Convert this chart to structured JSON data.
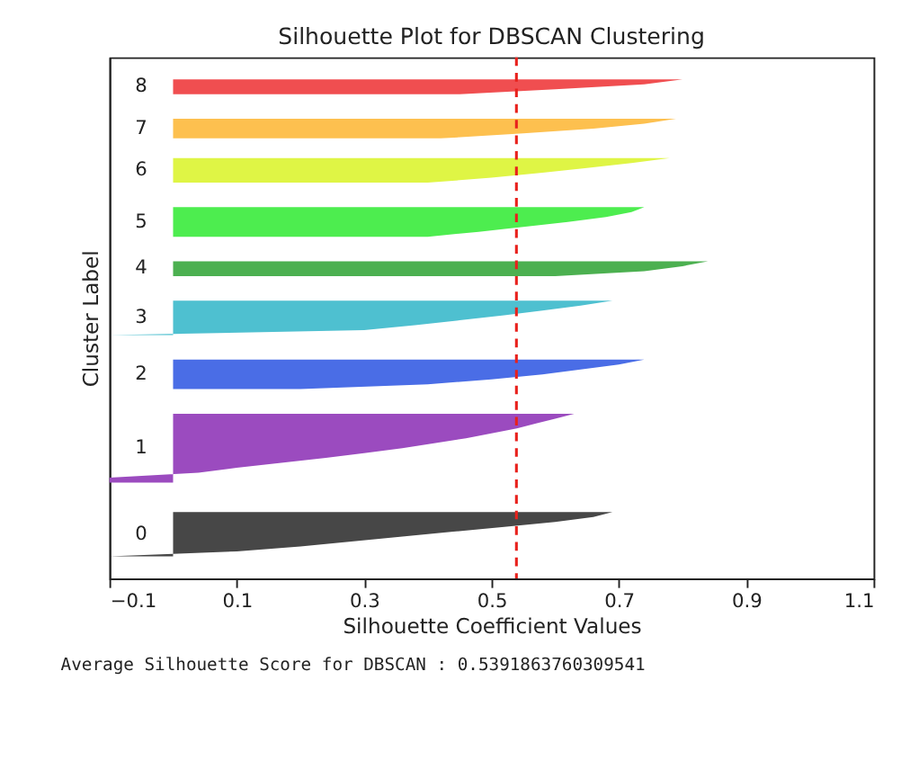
{
  "chart_data": {
    "type": "area",
    "orientation": "horizontal",
    "title": "Silhouette Plot for DBSCAN Clustering",
    "xlabel": "Silhouette Coefficient Values",
    "ylabel": "Cluster Label",
    "categories": [
      null,
      null,
      null,
      null,
      null,
      null,
      null,
      null,
      null,
      null,
      null,
      null,
      null,
      null,
      null,
      null,
      null,
      null,
      null,
      null,
      null,
      null,
      null,
      null,
      null,
      null,
      null,
      null,
      null,
      null,
      null,
      null,
      null,
      null,
      null,
      null,
      null,
      null,
      null,
      null,
      null,
      null,
      null,
      null,
      null,
      null,
      null,
      null,
      null,
      null,
      null,
      null,
      null,
      null,
      null,
      null,
      null,
      null,
      null,
      null,
      null,
      null,
      null,
      null,
      null,
      null,
      null,
      null,
      null,
      null,
      null,
      null,
      null,
      null,
      null,
      null,
      null,
      null,
      null,
      null,
      null,
      null,
      null,
      null,
      null,
      null,
      null,
      null,
      null,
      null,
      null,
      null,
      null,
      null,
      null,
      null,
      null,
      null,
      null,
      null,
      null,
      null,
      null,
      null,
      null,
      null
    ],
    "xlim": [
      -0.1,
      1.1
    ],
    "xticks": [
      -0.1,
      0.1,
      0.3,
      0.5,
      0.7,
      0.9,
      1.1
    ],
    "tick_labels": "x",
    "series": [
      {
        "name": "0",
        "color": "#474747",
        "values": [
          null,
          null,
          null,
          null,
          null,
          null,
          null,
          null,
          null,
          null,
          null,
          null,
          null,
          null,
          null,
          null,
          null,
          null,
          null,
          null,
          null,
          null,
          null,
          null,
          null,
          null,
          null,
          null,
          null,
          null,
          null,
          null,
          null,
          null,
          null,
          null,
          null,
          null,
          null,
          null,
          null,
          null,
          null,
          null,
          null,
          null,
          null,
          null,
          null,
          null,
          null,
          null,
          null,
          null,
          null,
          null,
          null,
          null,
          null,
          null,
          null,
          null,
          null,
          null,
          null,
          null,
          null,
          null,
          null,
          null,
          null,
          null,
          null,
          null,
          null,
          null,
          null,
          null,
          null,
          null,
          null,
          null,
          null,
          null,
          null,
          null,
          null,
          null,
          null,
          null,
          null,
          null,
          0.69,
          0.66,
          0.6,
          0.52,
          0.44,
          0.36,
          0.28,
          0.2,
          0.1,
          -0.1,
          null,
          null,
          null,
          null
        ]
      },
      {
        "name": "1",
        "color": "#9b4bbf",
        "values": [
          null,
          null,
          null,
          null,
          null,
          null,
          null,
          null,
          null,
          null,
          null,
          null,
          null,
          null,
          null,
          null,
          null,
          null,
          null,
          null,
          null,
          null,
          null,
          null,
          null,
          null,
          null,
          null,
          null,
          null,
          null,
          null,
          null,
          null,
          null,
          null,
          null,
          null,
          null,
          null,
          null,
          null,
          null,
          null,
          null,
          null,
          null,
          null,
          null,
          null,
          null,
          null,
          null,
          null,
          null,
          null,
          null,
          null,
          null,
          null,
          null,
          null,
          null,
          null,
          null,
          null,
          null,
          null,
          null,
          null,
          null,
          null,
          0.63,
          0.6,
          0.57,
          0.54,
          0.5,
          0.46,
          0.41,
          0.36,
          0.3,
          0.24,
          0.17,
          0.1,
          0.04,
          -0.1,
          -0.1,
          null,
          null,
          null,
          null,
          null,
          null,
          null,
          null,
          null,
          null,
          null,
          null,
          null,
          null,
          null,
          null,
          null,
          null,
          null
        ]
      },
      {
        "name": "2",
        "color": "#4a6de6",
        "values": [
          null,
          null,
          null,
          null,
          null,
          null,
          null,
          null,
          null,
          null,
          null,
          null,
          null,
          null,
          null,
          null,
          null,
          null,
          null,
          null,
          null,
          null,
          null,
          null,
          null,
          null,
          null,
          null,
          null,
          null,
          null,
          null,
          null,
          null,
          null,
          null,
          null,
          null,
          null,
          null,
          null,
          null,
          null,
          null,
          null,
          null,
          null,
          null,
          null,
          null,
          null,
          null,
          null,
          null,
          null,
          null,
          null,
          null,
          null,
          null,
          null,
          0.74,
          0.7,
          0.64,
          0.58,
          0.5,
          0.4,
          0.2,
          null,
          null,
          null,
          null,
          null,
          null,
          null,
          null,
          null,
          null,
          null,
          null,
          null,
          null,
          null,
          null,
          null,
          null,
          null,
          null,
          null,
          null,
          null,
          null,
          null,
          null,
          null,
          null,
          null,
          null,
          null,
          null,
          null,
          null,
          null,
          null,
          null,
          null
        ]
      },
      {
        "name": "3",
        "color": "#4ec0d0",
        "values": [
          null,
          null,
          null,
          null,
          null,
          null,
          null,
          null,
          null,
          null,
          null,
          null,
          null,
          null,
          null,
          null,
          null,
          null,
          null,
          null,
          null,
          null,
          null,
          null,
          null,
          null,
          null,
          null,
          null,
          null,
          null,
          null,
          null,
          null,
          null,
          null,
          null,
          null,
          null,
          null,
          null,
          null,
          null,
          null,
          null,
          null,
          null,
          null,
          null,
          0.69,
          0.64,
          0.58,
          0.52,
          0.45,
          0.38,
          0.3,
          -0.1,
          null,
          null,
          null,
          null,
          null,
          null,
          null,
          null,
          null,
          null,
          null,
          null,
          null,
          null,
          null,
          null,
          null,
          null,
          null,
          null,
          null,
          null,
          null,
          null,
          null,
          null,
          null,
          null,
          null,
          null,
          null,
          null,
          null,
          null,
          null,
          null,
          null,
          null,
          null,
          null,
          null,
          null,
          null,
          null,
          null,
          null,
          null,
          null,
          null
        ]
      },
      {
        "name": "4",
        "color": "#4cb050",
        "values": [
          null,
          null,
          null,
          null,
          null,
          null,
          null,
          null,
          null,
          null,
          null,
          null,
          null,
          null,
          null,
          null,
          null,
          null,
          null,
          null,
          null,
          null,
          null,
          null,
          null,
          null,
          null,
          null,
          null,
          null,
          null,
          null,
          null,
          null,
          null,
          null,
          null,
          null,
          null,
          null,
          null,
          0.84,
          0.8,
          0.74,
          0.6,
          null,
          null,
          null,
          null,
          null,
          null,
          null,
          null,
          null,
          null,
          null,
          null,
          null,
          null,
          null,
          null,
          null,
          null,
          null,
          null,
          null,
          null,
          null,
          null,
          null,
          null,
          null,
          null,
          null,
          null,
          null,
          null,
          null,
          null,
          null,
          null,
          null,
          null,
          null,
          null,
          null,
          null,
          null,
          null,
          null,
          null,
          null,
          null,
          null,
          null,
          null,
          null,
          null,
          null,
          null,
          null,
          null,
          null,
          null,
          null,
          null
        ]
      },
      {
        "name": "5",
        "color": "#4ded4f",
        "values": [
          null,
          null,
          null,
          null,
          null,
          null,
          null,
          null,
          null,
          null,
          null,
          null,
          null,
          null,
          null,
          null,
          null,
          null,
          null,
          null,
          null,
          null,
          null,
          null,
          null,
          null,
          null,
          null,
          null,
          null,
          0.74,
          0.72,
          0.68,
          0.62,
          0.55,
          0.48,
          0.4,
          null,
          null,
          null,
          null,
          null,
          null,
          null,
          null,
          null,
          null,
          null,
          null,
          null,
          null,
          null,
          null,
          null,
          null,
          null,
          null,
          null,
          null,
          null,
          null,
          null,
          null,
          null,
          null,
          null,
          null,
          null,
          null,
          null,
          null,
          null,
          null,
          null,
          null,
          null,
          null,
          null,
          null,
          null,
          null,
          null,
          null,
          null,
          null,
          null,
          null,
          null,
          null,
          null,
          null,
          null,
          null,
          null,
          null,
          null,
          null,
          null,
          null,
          null,
          null,
          null,
          null,
          null,
          null,
          null
        ]
      },
      {
        "name": "6",
        "color": "#dff545",
        "values": [
          null,
          null,
          null,
          null,
          null,
          null,
          null,
          null,
          null,
          null,
          null,
          null,
          null,
          null,
          null,
          null,
          null,
          null,
          null,
          null,
          0.78,
          0.72,
          0.65,
          0.58,
          0.5,
          0.4,
          null,
          null,
          null,
          null,
          null,
          null,
          null,
          null,
          null,
          null,
          null,
          null,
          null,
          null,
          null,
          null,
          null,
          null,
          null,
          null,
          null,
          null,
          null,
          null,
          null,
          null,
          null,
          null,
          null,
          null,
          null,
          null,
          null,
          null,
          null,
          null,
          null,
          null,
          null,
          null,
          null,
          null,
          null,
          null,
          null,
          null,
          null,
          null,
          null,
          null,
          null,
          null,
          null,
          null,
          null,
          null,
          null,
          null,
          null,
          null,
          null,
          null,
          null,
          null,
          null,
          null,
          null,
          null,
          null,
          null,
          null,
          null,
          null,
          null,
          null,
          null,
          null,
          null,
          null,
          null
        ]
      },
      {
        "name": "7",
        "color": "#fdc04f",
        "values": [
          null,
          null,
          null,
          null,
          null,
          null,
          null,
          null,
          null,
          null,
          null,
          null,
          0.79,
          0.74,
          0.66,
          0.55,
          0.42,
          null,
          null,
          null,
          null,
          null,
          null,
          null,
          null,
          null,
          null,
          null,
          null,
          null,
          null,
          null,
          null,
          null,
          null,
          null,
          null,
          null,
          null,
          null,
          null,
          null,
          null,
          null,
          null,
          null,
          null,
          null,
          null,
          null,
          null,
          null,
          null,
          null,
          null,
          null,
          null,
          null,
          null,
          null,
          null,
          null,
          null,
          null,
          null,
          null,
          null,
          null,
          null,
          null,
          null,
          null,
          null,
          null,
          null,
          null,
          null,
          null,
          null,
          null,
          null,
          null,
          null,
          null,
          null,
          null,
          null,
          null,
          null,
          null,
          null,
          null,
          null,
          null,
          null,
          null,
          null,
          null,
          null,
          null,
          null,
          null,
          null,
          null,
          null,
          null
        ]
      },
      {
        "name": "8",
        "color": "#f04e50",
        "values": [
          null,
          null,
          null,
          null,
          0.8,
          0.74,
          0.6,
          0.45,
          null,
          null,
          null,
          null,
          null,
          null,
          null,
          null,
          null,
          null,
          null,
          null,
          null,
          null,
          null,
          null,
          null,
          null,
          null,
          null,
          null,
          null,
          null,
          null,
          null,
          null,
          null,
          null,
          null,
          null,
          null,
          null,
          null,
          null,
          null,
          null,
          null,
          null,
          null,
          null,
          null,
          null,
          null,
          null,
          null,
          null,
          null,
          null,
          null,
          null,
          null,
          null,
          null,
          null,
          null,
          null,
          null,
          null,
          null,
          null,
          null,
          null,
          null,
          null,
          null,
          null,
          null,
          null,
          null,
          null,
          null,
          null,
          null,
          null,
          null,
          null,
          null,
          null,
          null,
          null,
          null,
          null,
          null,
          null,
          null,
          null,
          null,
          null,
          null,
          null,
          null,
          null,
          null,
          null,
          null,
          null,
          null,
          null
        ]
      }
    ],
    "ref_lines": [
      {
        "axis": "x",
        "value": 0.5391863760309541,
        "color": "#e8211c",
        "line_style": "dashed"
      }
    ],
    "annotations": [
      "Average Silhouette Score for DBSCAN : 0.5391863760309541"
    ]
  }
}
